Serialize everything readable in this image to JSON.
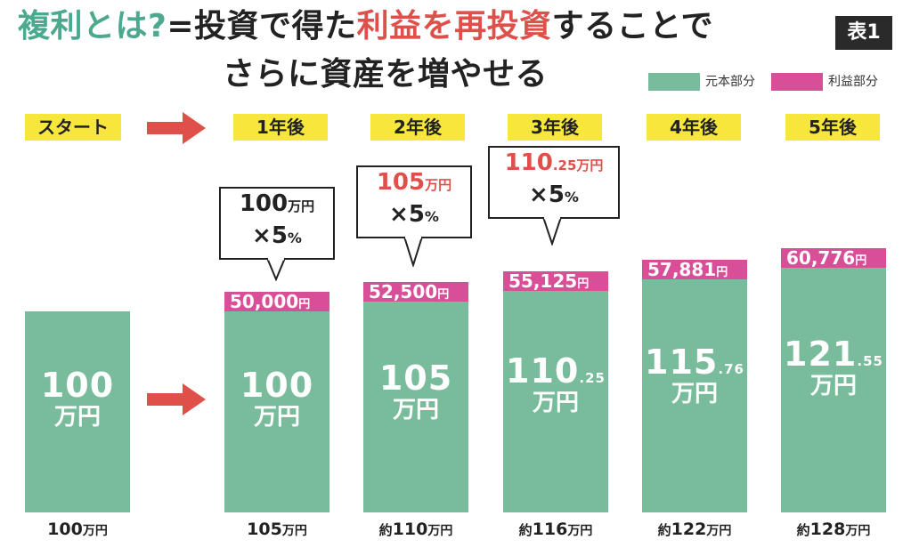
{
  "title": {
    "line1": {
      "p1": "複利とは?",
      "p2": "=投資で得た",
      "p3": "利益を再投資",
      "p4": "することで"
    },
    "line2": "さらに資産を増やせる"
  },
  "badge": "表1",
  "legend": {
    "principal": "元本部分",
    "profit": "利益部分"
  },
  "colors": {
    "principal": "#79bc9c",
    "profit": "#d84f98",
    "accent_red": "#e0504b",
    "label_yellow": "#f7e63c",
    "title_teal": "#4aa98f"
  },
  "steps": [
    "スタート",
    "1年後",
    "2年後",
    "3年後",
    "4年後",
    "5年後"
  ],
  "bars": [
    {
      "main": "100",
      "decimal": "",
      "unit": "万円",
      "profit_value": "",
      "profit_unit": "",
      "total_prefix": "",
      "total_value": "100",
      "total_unit": "万円"
    },
    {
      "main": "100",
      "decimal": "",
      "unit": "万円",
      "profit_value": "50,000",
      "profit_unit": "円",
      "total_prefix": "",
      "total_value": "105",
      "total_unit": "万円"
    },
    {
      "main": "105",
      "decimal": "",
      "unit": "万円",
      "profit_value": "52,500",
      "profit_unit": "円",
      "total_prefix": "約",
      "total_value": "110",
      "total_unit": "万円"
    },
    {
      "main": "110",
      "decimal": ".25",
      "unit": "万円",
      "profit_value": "55,125",
      "profit_unit": "円",
      "total_prefix": "約",
      "total_value": "116",
      "total_unit": "万円"
    },
    {
      "main": "115",
      "decimal": ".76",
      "unit": "万円",
      "profit_value": "57,881",
      "profit_unit": "円",
      "total_prefix": "約",
      "total_value": "122",
      "total_unit": "万円"
    },
    {
      "main": "121",
      "decimal": ".55",
      "unit": "万円",
      "profit_value": "60,776",
      "profit_unit": "円",
      "total_prefix": "約",
      "total_value": "128",
      "total_unit": "万円"
    }
  ],
  "callouts": [
    {
      "main": "100",
      "decimal": "",
      "unit": "万円",
      "rate": "×5",
      "rate_unit": "%"
    },
    {
      "main": "105",
      "decimal": "",
      "unit": "万円",
      "rate": "×5",
      "rate_unit": "%"
    },
    {
      "main": "110",
      "decimal": ".25",
      "unit": "万円",
      "rate": "×5",
      "rate_unit": "%"
    }
  ],
  "chart_data": {
    "type": "bar",
    "stacked": true,
    "categories": [
      "スタート",
      "1年後",
      "2年後",
      "3年後",
      "4年後",
      "5年後"
    ],
    "series": [
      {
        "name": "元本部分",
        "values": [
          100,
          100,
          105,
          110.25,
          115.76,
          121.55
        ]
      },
      {
        "name": "利益部分",
        "values": [
          0,
          5,
          5.25,
          5.5125,
          5.7881,
          6.0776
        ]
      }
    ]
  }
}
